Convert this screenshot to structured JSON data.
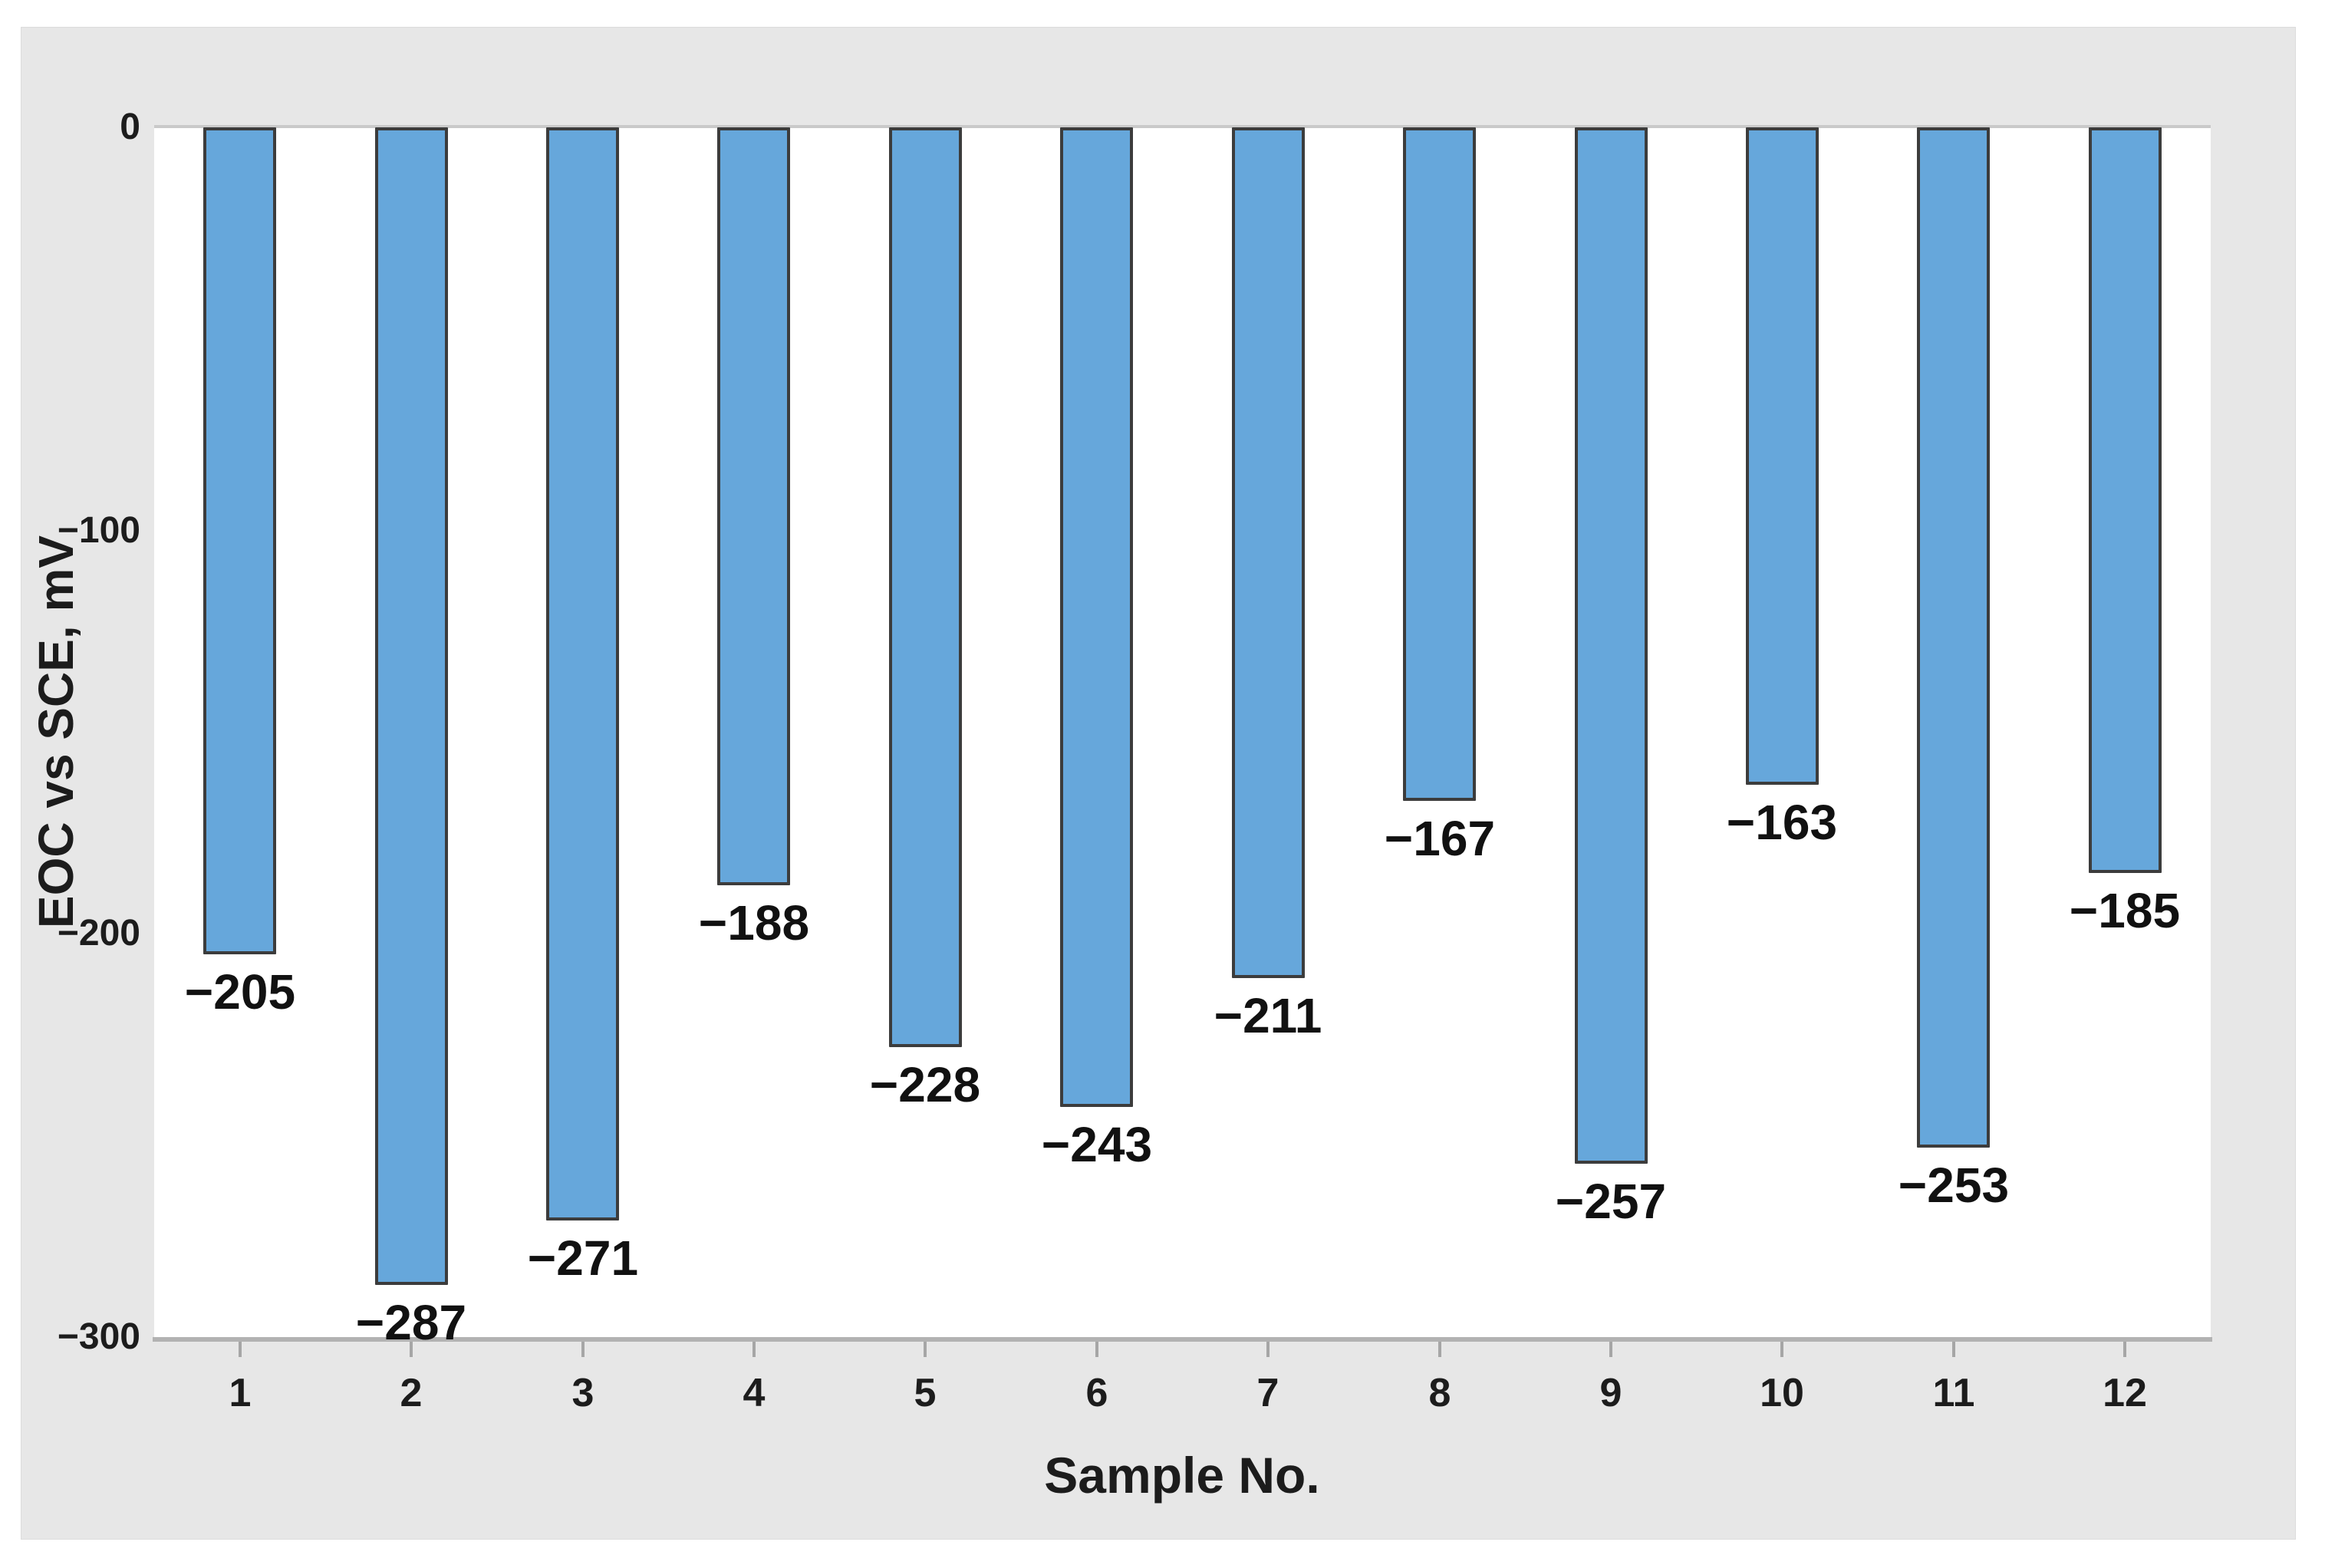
{
  "figure": {
    "background_color": "#E7E7E7",
    "plot_background_color": "#FFFFFF",
    "axis_line_color": "#B2B2B2",
    "tick_mark_color": "#A6A6A6",
    "text_color": "#1C1C1C"
  },
  "chart_data": {
    "type": "bar",
    "title": "",
    "xlabel": "Sample No.",
    "ylabel": "EOC vs SCE, mV",
    "categories": [
      "1",
      "2",
      "3",
      "4",
      "5",
      "6",
      "7",
      "8",
      "9",
      "10",
      "11",
      "12"
    ],
    "values": [
      -205,
      -287,
      -271,
      -188,
      -228,
      -243,
      -211,
      -167,
      -257,
      -163,
      -253,
      -185
    ],
    "bar_labels": [
      "−205",
      "−287",
      "−271",
      "−188",
      "−228",
      "−243",
      "−211",
      "−167",
      "−257",
      "−163",
      "−253",
      "−185"
    ],
    "yticks": [
      {
        "value": 0,
        "label": "0"
      },
      {
        "value": -100,
        "label": "−100"
      },
      {
        "value": -200,
        "label": "−200"
      },
      {
        "value": -300,
        "label": "−300"
      }
    ],
    "ylim": [
      -300,
      0
    ],
    "grid": "off",
    "legend": "none",
    "bar_color": "#66A7DB",
    "bar_border_color": "#3C3C3C"
  }
}
